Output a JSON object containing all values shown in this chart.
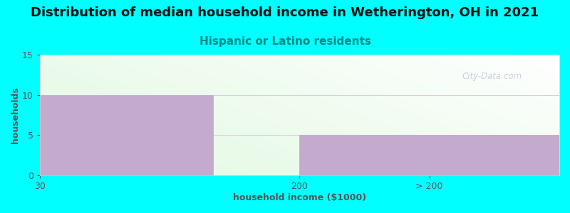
{
  "title": "Distribution of median household income in Wetherington, OH in 2021",
  "subtitle": "Hispanic or Latino residents",
  "xlabel": "household income ($1000)",
  "ylabel": "households",
  "background_color": "#00FFFF",
  "bar_color": "#C4AACC",
  "bar_edgecolor": "#BBAACC",
  "ylim": [
    0,
    15
  ],
  "yticks": [
    0,
    5,
    10,
    15
  ],
  "title_fontsize": 13,
  "subtitle_fontsize": 11,
  "subtitle_color": "#008888",
  "axis_label_color": "#555555",
  "tick_color": "#555555",
  "watermark": "City-Data.com",
  "gridline_color": "#DDCCDD",
  "gridline_y": [
    5,
    10
  ]
}
